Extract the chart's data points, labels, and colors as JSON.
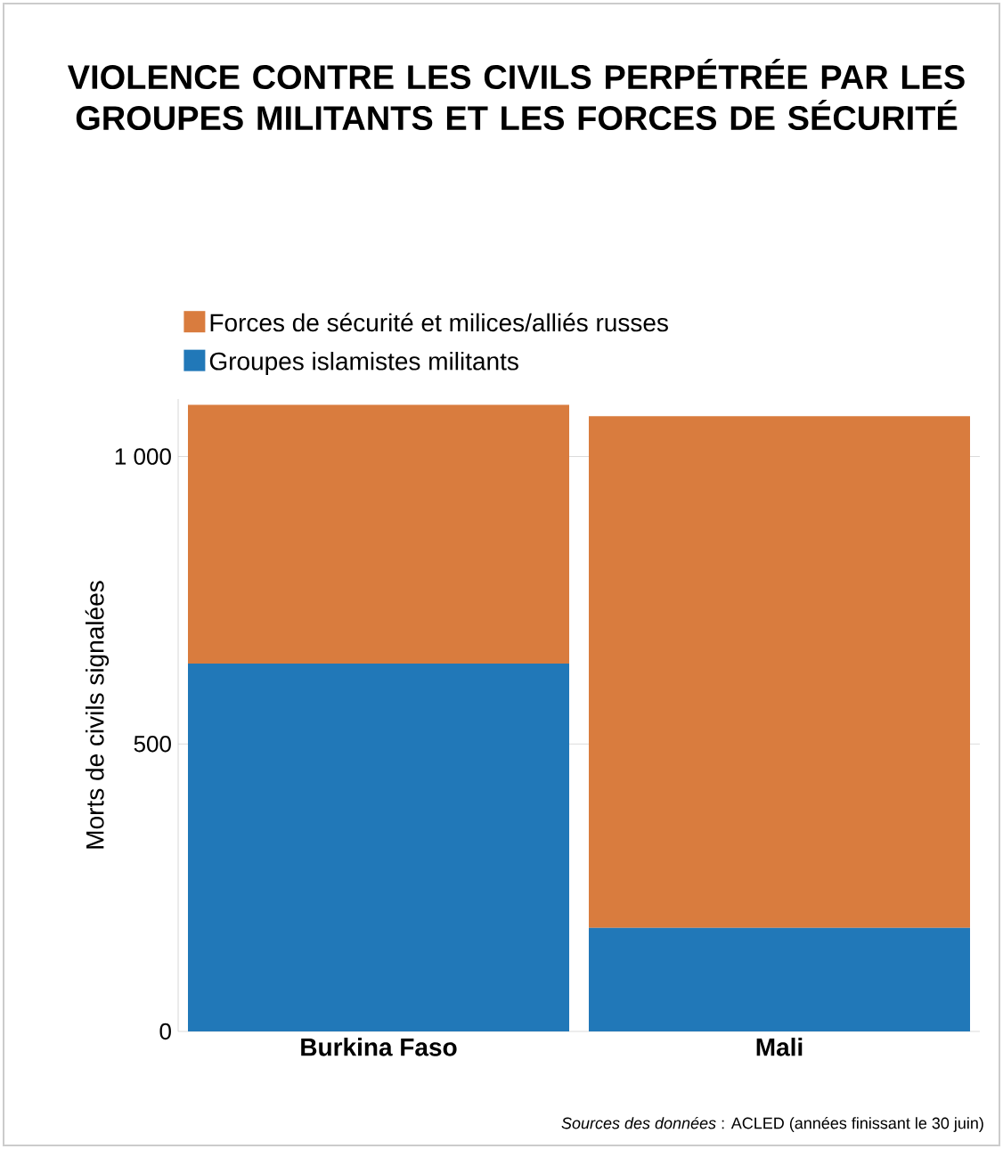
{
  "chart_data": {
    "type": "bar",
    "stacked": true,
    "title": "VIOLENCE CONTRE LES CIVILS PERPÉTRÉE PAR LES GROUPES MILITANTS ET LES FORCES DE SÉCURITÉ",
    "ylabel": "Morts de civils signalées",
    "categories": [
      "Burkina Faso",
      "Mali"
    ],
    "series": [
      {
        "name": "Groupes islamistes militants",
        "color": "#2178b8",
        "values": [
          640,
          180
        ]
      },
      {
        "name": "Forces de sécurité et milices/alliés russes",
        "color": "#d97c3e",
        "values": [
          450,
          890
        ]
      }
    ],
    "ylim": [
      0,
      1100
    ],
    "yticks": [
      0,
      500,
      {
        "value": 1000,
        "label": "1 000"
      }
    ],
    "grid": "y",
    "legend": "top left",
    "annotations": [
      "*Sources des données* : ACLED (années finissant le 30 juin)"
    ]
  }
}
